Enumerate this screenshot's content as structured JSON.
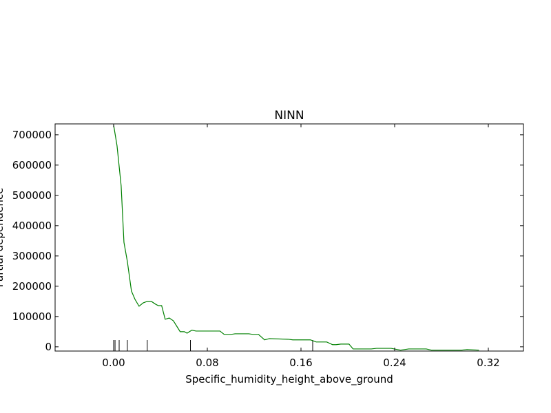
{
  "chart_data": {
    "type": "line",
    "title": "NINN",
    "xlabel": "Specific_humidity_height_above_ground",
    "ylabel": "Partial dependence",
    "x": [
      0,
      0.0029,
      0.0064,
      0.0088,
      0.0117,
      0.0152,
      0.0182,
      0.0217,
      0.0252,
      0.0287,
      0.0322,
      0.0357,
      0.0381,
      0.041,
      0.044,
      0.0475,
      0.051,
      0.0568,
      0.0604,
      0.0627,
      0.0668,
      0.0703,
      0.0908,
      0.0944,
      0.1002,
      0.1037,
      0.1155,
      0.119,
      0.1237,
      0.1289,
      0.133,
      0.149,
      0.153,
      0.168,
      0.173,
      0.182,
      0.187,
      0.19,
      0.194,
      0.201,
      0.2045,
      0.22,
      0.2245,
      0.237,
      0.245,
      0.252,
      0.267,
      0.2714,
      0.297,
      0.3018,
      0.312
    ],
    "series": [
      {
        "color": "#008000",
        "values": [
          732000,
          663600,
          532000,
          345000,
          282000,
          184000,
          157000,
          134000,
          145000,
          150000,
          150000,
          141000,
          136000,
          136000,
          91000,
          95000,
          86000,
          50000,
          50000,
          45000,
          55000,
          52000,
          52000,
          41000,
          41000,
          43000,
          43000,
          41000,
          41000,
          23000,
          27000,
          25000,
          23000,
          23000,
          16000,
          16000,
          7000,
          7000,
          9000,
          9000,
          -7000,
          -7000,
          -5000,
          -5000,
          -11000,
          -7000,
          -7000,
          -11000,
          -11000,
          -9000,
          -11000
        ]
      }
    ],
    "rug": [
      0,
      0.0012,
      0.0047,
      0.0117,
      0.0287,
      0.0656,
      0.17
    ],
    "xlim": [
      -0.05,
      0.35
    ],
    "ylim": [
      -14000,
      736000
    ],
    "xticks": [
      {
        "value": 0,
        "label": "0.00"
      },
      0.08,
      0.16,
      0.24,
      0.32
    ],
    "yticks": [
      0,
      100000,
      200000,
      300000,
      400000,
      500000,
      600000,
      700000
    ]
  }
}
